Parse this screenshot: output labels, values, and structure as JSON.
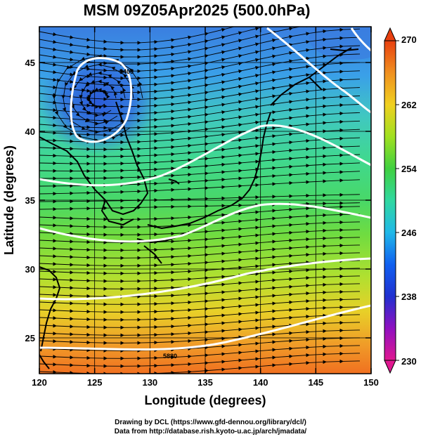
{
  "title": "MSM 09Z05Apr2025 (500.0hPa)",
  "credits": {
    "line1": "Drawing by DCL (https://www.gfd-dennou.org/library/dcl/)",
    "line2": "Data from http://database.rish.kyoto-u.ac.jp/arch/jmadata/"
  },
  "map": {
    "xlabel": "Longitude (degrees)",
    "ylabel": "Latitude  (degrees)",
    "xlim": [
      120,
      150
    ],
    "ylim": [
      22.4,
      47.6
    ],
    "xticks": [
      120,
      125,
      130,
      135,
      140,
      145,
      150
    ],
    "yticks": [
      25,
      30,
      35,
      40,
      45
    ],
    "contour_labels": [
      "5400",
      "5880"
    ]
  },
  "colorbar": {
    "min": 230,
    "max": 270,
    "labels": [
      270,
      262,
      254,
      246,
      238,
      230
    ],
    "stops": [
      "#e01890",
      "#9010c0",
      "#2030d0",
      "#1060f0",
      "#20b8e8",
      "#30d8a0",
      "#40d040",
      "#a0e020",
      "#f0d020",
      "#f09020",
      "#e84010"
    ]
  }
}
